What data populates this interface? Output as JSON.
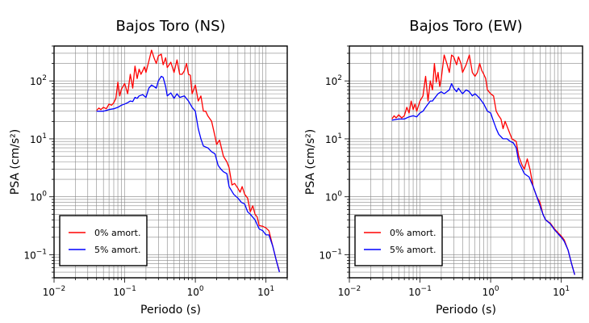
{
  "chart_data": [
    {
      "type": "line",
      "title": "Bajos Toro (NS)",
      "xlabel": "Periodo (s)",
      "ylabel": "PSA (cm/s²)",
      "xscale": "log",
      "yscale": "log",
      "xlim": [
        0.01,
        20
      ],
      "ylim": [
        0.04,
        400
      ],
      "xticks": [
        {
          "v": 0.01,
          "base": "10",
          "exp": "−2"
        },
        {
          "v": 0.1,
          "base": "10",
          "exp": "−1"
        },
        {
          "v": 1,
          "base": "10",
          "exp": "0"
        },
        {
          "v": 10,
          "base": "10",
          "exp": "1"
        }
      ],
      "yticks": [
        {
          "v": 0.1,
          "base": "10",
          "exp": "−1"
        },
        {
          "v": 1,
          "base": "10",
          "exp": "0"
        },
        {
          "v": 10,
          "base": "10",
          "exp": "1"
        },
        {
          "v": 100,
          "base": "10",
          "exp": "2"
        }
      ],
      "grid": true,
      "legend_position": "bottom-left",
      "series": [
        {
          "name": "0% amort.",
          "color": "#ff0000",
          "points": [
            [
              0.04,
              31
            ],
            [
              0.043,
              34
            ],
            [
              0.046,
              32
            ],
            [
              0.05,
              35
            ],
            [
              0.055,
              33
            ],
            [
              0.06,
              40
            ],
            [
              0.065,
              38
            ],
            [
              0.07,
              42
            ],
            [
              0.075,
              50
            ],
            [
              0.08,
              95
            ],
            [
              0.085,
              55
            ],
            [
              0.09,
              72
            ],
            [
              0.1,
              90
            ],
            [
              0.11,
              60
            ],
            [
              0.12,
              130
            ],
            [
              0.13,
              75
            ],
            [
              0.14,
              180
            ],
            [
              0.15,
              110
            ],
            [
              0.16,
              160
            ],
            [
              0.17,
              130
            ],
            [
              0.18,
              150
            ],
            [
              0.19,
              175
            ],
            [
              0.2,
              140
            ],
            [
              0.22,
              220
            ],
            [
              0.24,
              340
            ],
            [
              0.26,
              250
            ],
            [
              0.28,
              200
            ],
            [
              0.3,
              270
            ],
            [
              0.33,
              290
            ],
            [
              0.35,
              190
            ],
            [
              0.38,
              250
            ],
            [
              0.4,
              170
            ],
            [
              0.45,
              210
            ],
            [
              0.5,
              140
            ],
            [
              0.55,
              230
            ],
            [
              0.6,
              130
            ],
            [
              0.65,
              130
            ],
            [
              0.7,
              150
            ],
            [
              0.75,
              200
            ],
            [
              0.8,
              130
            ],
            [
              0.85,
              125
            ],
            [
              0.9,
              60
            ],
            [
              1.0,
              85
            ],
            [
              1.1,
              45
            ],
            [
              1.2,
              55
            ],
            [
              1.3,
              30
            ],
            [
              1.4,
              30
            ],
            [
              1.5,
              25
            ],
            [
              1.7,
              20
            ],
            [
              1.9,
              11
            ],
            [
              2.0,
              8
            ],
            [
              2.2,
              9.5
            ],
            [
              2.5,
              5
            ],
            [
              2.8,
              4
            ],
            [
              3.0,
              3.2
            ],
            [
              3.3,
              1.6
            ],
            [
              3.6,
              1.7
            ],
            [
              4.0,
              1.4
            ],
            [
              4.3,
              1.2
            ],
            [
              4.6,
              1.5
            ],
            [
              5.0,
              1.1
            ],
            [
              5.5,
              0.95
            ],
            [
              6.0,
              0.55
            ],
            [
              6.5,
              0.7
            ],
            [
              7.0,
              0.5
            ],
            [
              7.5,
              0.45
            ],
            [
              8.0,
              0.32
            ],
            [
              9.0,
              0.31
            ],
            [
              10.0,
              0.29
            ],
            [
              11.0,
              0.26
            ],
            [
              12.5,
              0.14
            ],
            [
              14.0,
              0.08
            ],
            [
              15.5,
              0.052
            ]
          ]
        },
        {
          "name": "5% amort.",
          "color": "#0000ff",
          "points": [
            [
              0.04,
              30
            ],
            [
              0.05,
              30
            ],
            [
              0.06,
              32
            ],
            [
              0.07,
              33
            ],
            [
              0.08,
              35
            ],
            [
              0.09,
              38
            ],
            [
              0.1,
              40
            ],
            [
              0.11,
              42
            ],
            [
              0.12,
              45
            ],
            [
              0.13,
              44
            ],
            [
              0.14,
              52
            ],
            [
              0.15,
              50
            ],
            [
              0.16,
              55
            ],
            [
              0.18,
              58
            ],
            [
              0.2,
              52
            ],
            [
              0.22,
              75
            ],
            [
              0.24,
              85
            ],
            [
              0.26,
              80
            ],
            [
              0.28,
              75
            ],
            [
              0.3,
              100
            ],
            [
              0.33,
              120
            ],
            [
              0.35,
              115
            ],
            [
              0.38,
              80
            ],
            [
              0.4,
              55
            ],
            [
              0.45,
              62
            ],
            [
              0.5,
              50
            ],
            [
              0.55,
              60
            ],
            [
              0.6,
              52
            ],
            [
              0.7,
              55
            ],
            [
              0.8,
              45
            ],
            [
              0.9,
              35
            ],
            [
              1.0,
              30
            ],
            [
              1.1,
              15
            ],
            [
              1.2,
              10
            ],
            [
              1.3,
              7.5
            ],
            [
              1.5,
              7
            ],
            [
              1.7,
              6
            ],
            [
              1.9,
              5.5
            ],
            [
              2.1,
              3.5
            ],
            [
              2.3,
              3
            ],
            [
              2.5,
              2.7
            ],
            [
              2.8,
              2.5
            ],
            [
              3.0,
              1.5
            ],
            [
              3.5,
              1.1
            ],
            [
              4.0,
              0.95
            ],
            [
              4.5,
              0.8
            ],
            [
              5.0,
              0.75
            ],
            [
              5.5,
              0.55
            ],
            [
              6.0,
              0.5
            ],
            [
              7.0,
              0.4
            ],
            [
              8.0,
              0.28
            ],
            [
              9.0,
              0.26
            ],
            [
              10.0,
              0.22
            ],
            [
              11.0,
              0.22
            ],
            [
              12.5,
              0.14
            ],
            [
              14.0,
              0.08
            ],
            [
              15.5,
              0.05
            ]
          ]
        }
      ]
    },
    {
      "type": "line",
      "title": "Bajos Toro (EW)",
      "xlabel": "Periodo (s)",
      "ylabel": "PSA (cm/s²)",
      "xscale": "log",
      "yscale": "log",
      "xlim": [
        0.01,
        20
      ],
      "ylim": [
        0.04,
        400
      ],
      "xticks": [
        {
          "v": 0.01,
          "base": "10",
          "exp": "−2"
        },
        {
          "v": 0.1,
          "base": "10",
          "exp": "−1"
        },
        {
          "v": 1,
          "base": "10",
          "exp": "0"
        },
        {
          "v": 10,
          "base": "10",
          "exp": "1"
        }
      ],
      "yticks": [
        {
          "v": 0.1,
          "base": "10",
          "exp": "−1"
        },
        {
          "v": 1,
          "base": "10",
          "exp": "0"
        },
        {
          "v": 10,
          "base": "10",
          "exp": "1"
        },
        {
          "v": 100,
          "base": "10",
          "exp": "2"
        }
      ],
      "grid": true,
      "legend_position": "bottom-left",
      "series": [
        {
          "name": "0% amort.",
          "color": "#ff0000",
          "points": [
            [
              0.04,
              22
            ],
            [
              0.043,
              25
            ],
            [
              0.046,
              23
            ],
            [
              0.05,
              26
            ],
            [
              0.055,
              23
            ],
            [
              0.06,
              25
            ],
            [
              0.065,
              35
            ],
            [
              0.07,
              28
            ],
            [
              0.075,
              45
            ],
            [
              0.08,
              32
            ],
            [
              0.085,
              40
            ],
            [
              0.09,
              30
            ],
            [
              0.1,
              45
            ],
            [
              0.11,
              55
            ],
            [
              0.12,
              120
            ],
            [
              0.13,
              45
            ],
            [
              0.14,
              100
            ],
            [
              0.15,
              70
            ],
            [
              0.16,
              200
            ],
            [
              0.17,
              95
            ],
            [
              0.18,
              140
            ],
            [
              0.19,
              80
            ],
            [
              0.2,
              110
            ],
            [
              0.22,
              280
            ],
            [
              0.24,
              200
            ],
            [
              0.26,
              140
            ],
            [
              0.28,
              280
            ],
            [
              0.3,
              260
            ],
            [
              0.33,
              190
            ],
            [
              0.35,
              260
            ],
            [
              0.38,
              200
            ],
            [
              0.4,
              140
            ],
            [
              0.45,
              190
            ],
            [
              0.5,
              280
            ],
            [
              0.55,
              140
            ],
            [
              0.6,
              120
            ],
            [
              0.65,
              140
            ],
            [
              0.7,
              200
            ],
            [
              0.75,
              150
            ],
            [
              0.8,
              130
            ],
            [
              0.85,
              110
            ],
            [
              0.9,
              70
            ],
            [
              1.0,
              60
            ],
            [
              1.1,
              55
            ],
            [
              1.2,
              30
            ],
            [
              1.3,
              25
            ],
            [
              1.4,
              22
            ],
            [
              1.5,
              15
            ],
            [
              1.6,
              20
            ],
            [
              1.8,
              14
            ],
            [
              2.0,
              10
            ],
            [
              2.3,
              9
            ],
            [
              2.5,
              5
            ],
            [
              2.8,
              3.5
            ],
            [
              3.0,
              3
            ],
            [
              3.3,
              4.5
            ],
            [
              3.6,
              3
            ],
            [
              4.0,
              1.5
            ],
            [
              4.5,
              1
            ],
            [
              5.0,
              0.8
            ],
            [
              5.5,
              0.5
            ],
            [
              6.0,
              0.4
            ],
            [
              7.0,
              0.35
            ],
            [
              8.0,
              0.28
            ],
            [
              9.0,
              0.24
            ],
            [
              10.0,
              0.21
            ],
            [
              11.0,
              0.18
            ],
            [
              12.5,
              0.12
            ],
            [
              14.0,
              0.07
            ],
            [
              15.5,
              0.045
            ]
          ]
        },
        {
          "name": "5% amort.",
          "color": "#0000ff",
          "points": [
            [
              0.04,
              21
            ],
            [
              0.05,
              22
            ],
            [
              0.06,
              22
            ],
            [
              0.07,
              24
            ],
            [
              0.08,
              25
            ],
            [
              0.09,
              24
            ],
            [
              0.1,
              28
            ],
            [
              0.11,
              30
            ],
            [
              0.12,
              35
            ],
            [
              0.13,
              40
            ],
            [
              0.14,
              45
            ],
            [
              0.15,
              45
            ],
            [
              0.16,
              50
            ],
            [
              0.18,
              60
            ],
            [
              0.2,
              65
            ],
            [
              0.22,
              60
            ],
            [
              0.24,
              65
            ],
            [
              0.26,
              70
            ],
            [
              0.28,
              90
            ],
            [
              0.3,
              75
            ],
            [
              0.33,
              65
            ],
            [
              0.35,
              75
            ],
            [
              0.38,
              65
            ],
            [
              0.4,
              60
            ],
            [
              0.45,
              70
            ],
            [
              0.5,
              65
            ],
            [
              0.55,
              55
            ],
            [
              0.6,
              60
            ],
            [
              0.65,
              55
            ],
            [
              0.7,
              50
            ],
            [
              0.8,
              40
            ],
            [
              0.9,
              30
            ],
            [
              1.0,
              28
            ],
            [
              1.1,
              20
            ],
            [
              1.2,
              15
            ],
            [
              1.3,
              12
            ],
            [
              1.5,
              10
            ],
            [
              1.7,
              10
            ],
            [
              1.9,
              9
            ],
            [
              2.1,
              8.5
            ],
            [
              2.3,
              7
            ],
            [
              2.5,
              4
            ],
            [
              2.8,
              3
            ],
            [
              3.0,
              2.5
            ],
            [
              3.5,
              2.2
            ],
            [
              4.0,
              1.5
            ],
            [
              4.5,
              1
            ],
            [
              5.0,
              0.7
            ],
            [
              5.5,
              0.5
            ],
            [
              6.0,
              0.4
            ],
            [
              7.0,
              0.34
            ],
            [
              8.0,
              0.27
            ],
            [
              9.0,
              0.23
            ],
            [
              10.0,
              0.2
            ],
            [
              11.0,
              0.17
            ],
            [
              12.5,
              0.12
            ],
            [
              14.0,
              0.07
            ],
            [
              15.5,
              0.045
            ]
          ]
        }
      ]
    }
  ]
}
